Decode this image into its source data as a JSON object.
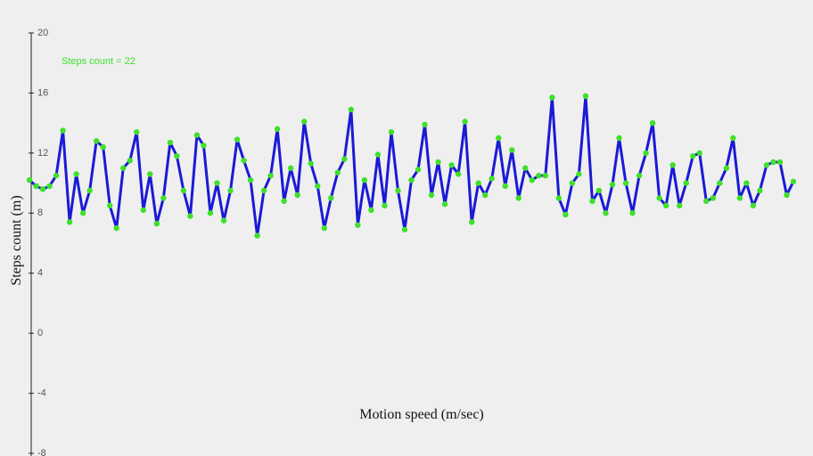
{
  "chart_data": {
    "type": "line",
    "annotation": "Steps count = 22",
    "x_label": "Motion speed (m/sec)",
    "y_label": "Steps count (m)",
    "ylim": [
      -8,
      20
    ],
    "yticks": [
      20,
      16,
      12,
      8,
      4,
      0,
      -4,
      -8
    ],
    "series": [
      {
        "line_color": "#1a1ad6",
        "marker_color": "#3ee02a",
        "values": [
          10.2,
          9.8,
          9.6,
          9.8,
          10.5,
          13.5,
          7.4,
          10.6,
          8.0,
          9.5,
          12.8,
          12.4,
          8.5,
          7.0,
          11.0,
          11.5,
          13.4,
          8.2,
          10.6,
          7.3,
          9.0,
          12.7,
          11.8,
          9.5,
          7.8,
          13.2,
          12.5,
          8.0,
          10.0,
          7.5,
          9.5,
          12.9,
          11.5,
          10.2,
          6.5,
          9.5,
          10.5,
          13.6,
          8.8,
          11.0,
          9.2,
          14.1,
          11.3,
          9.8,
          7.0,
          9.0,
          10.7,
          11.6,
          14.9,
          7.2,
          10.2,
          8.2,
          11.9,
          8.5,
          13.4,
          9.5,
          6.9,
          10.2,
          10.9,
          13.9,
          9.2,
          11.4,
          8.6,
          11.2,
          10.6,
          14.1,
          7.4,
          10.0,
          9.2,
          10.3,
          13.0,
          9.8,
          12.2,
          9.0,
          11.0,
          10.2,
          10.5,
          10.5,
          15.7,
          9.0,
          7.9,
          10.0,
          10.6,
          15.8,
          8.8,
          9.5,
          8.0,
          9.9,
          13.0,
          10.0,
          8.0,
          10.5,
          12.0,
          14.0,
          9.0,
          8.5,
          11.2,
          8.5,
          10.0,
          11.8,
          12.0,
          8.8,
          9.0,
          10.0,
          11.0,
          13.0,
          9.0,
          10.0,
          8.5,
          9.5,
          11.2,
          11.4,
          11.4,
          9.2,
          10.1
        ]
      }
    ]
  }
}
